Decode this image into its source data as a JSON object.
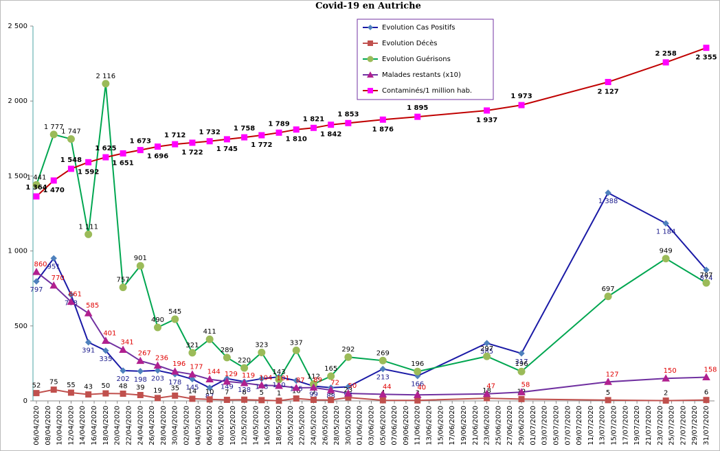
{
  "chart_data": {
    "type": "line",
    "title": "Covid-19 en Autriche",
    "x": [
      "06/04/2020",
      "09/04/2020",
      "12/04/2020",
      "15/04/2020",
      "18/04/2020",
      "21/04/2020",
      "24/04/2020",
      "27/04/2020",
      "30/04/2020",
      "03/05/2020",
      "06/05/2020",
      "09/05/2020",
      "12/05/2020",
      "15/05/2020",
      "18/05/2020",
      "21/05/2020",
      "24/05/2020",
      "27/05/2020",
      "30/05/2020",
      "05/06/2020",
      "11/06/2020",
      "23/06/2020",
      "29/06/2020",
      "14/07/2020",
      "24/07/2020",
      "31/07/2020"
    ],
    "xlim": [
      "06/04/2020",
      "31/07/2020"
    ],
    "xticks": [
      "06/04/2020",
      "08/04/2020",
      "10/04/2020",
      "12/04/2020",
      "14/04/2020",
      "16/04/2020",
      "18/04/2020",
      "20/04/2020",
      "22/04/2020",
      "24/04/2020",
      "26/04/2020",
      "28/04/2020",
      "30/04/2020",
      "02/05/2020",
      "04/05/2020",
      "06/05/2020",
      "08/05/2020",
      "10/05/2020",
      "12/05/2020",
      "14/05/2020",
      "16/05/2020",
      "18/05/2020",
      "20/05/2020",
      "22/05/2020",
      "24/05/2020",
      "26/05/2020",
      "28/05/2020",
      "30/05/2020",
      "01/06/2020",
      "03/06/2020",
      "05/06/2020",
      "07/06/2020",
      "09/06/2020",
      "11/06/2020",
      "13/06/2020",
      "15/06/2020",
      "17/06/2020",
      "19/06/2020",
      "21/06/2020",
      "23/06/2020",
      "25/06/2020",
      "27/06/2020",
      "29/06/2020",
      "01/07/2020",
      "03/07/2020",
      "05/07/2020",
      "07/07/2020",
      "09/07/2020",
      "11/07/2020",
      "13/07/2020",
      "15/07/2020",
      "17/07/2020",
      "19/07/2020",
      "21/07/2020",
      "23/07/2020",
      "25/07/2020",
      "27/07/2020",
      "29/07/2020",
      "31/07/2020"
    ],
    "ylim": [
      0,
      2500
    ],
    "yticks": [
      0,
      500,
      {
        "value": 1000,
        "label": "1 000"
      },
      {
        "value": 1500,
        "label": "1 500"
      },
      {
        "value": 2000,
        "label": "2 000"
      },
      {
        "value": 2500,
        "label": "2 500"
      }
    ],
    "grid": false,
    "legend": "top-center",
    "series": [
      {
        "name": "Evolution Cas Positifs",
        "color": "#1a1aa6",
        "marker": "diamond",
        "marker_color": "#4f81bd",
        "label_color": "#1a1a8c",
        "values": [
          797,
          951,
          708,
          391,
          335,
          202,
          198,
          203,
          178,
          145,
          87,
          149,
          128,
          148,
          160,
          135,
          99,
          88,
          94,
          213,
          166,
          385,
          317,
          1388,
          1184,
          874
        ],
        "value_labels": [
          "797",
          "951",
          "708",
          "391",
          "335",
          "202",
          "198",
          "203",
          "178",
          "145",
          "87",
          "149",
          "128",
          "148",
          "160",
          "135",
          "99",
          "88",
          "94",
          "213",
          "166",
          "385",
          "317",
          "1 388",
          "1 184",
          "874"
        ]
      },
      {
        "name": "Evolution Décès",
        "color": "#c0504d",
        "marker": "square",
        "marker_color": "#c0504d",
        "label_color": "#000000",
        "values": [
          52,
          75,
          55,
          43,
          50,
          48,
          39,
          19,
          35,
          14,
          10,
          7,
          8,
          5,
          1,
          16,
          7,
          6,
          23,
          4,
          3,
          18,
          12,
          5,
          2,
          6
        ],
        "value_labels": [
          "52",
          "75",
          "55",
          "43",
          "50",
          "48",
          "39",
          "19",
          "35",
          "14",
          "10",
          "7",
          "8",
          "5",
          "1",
          "16",
          "7",
          "6",
          "23",
          "4",
          "3",
          "18",
          "12",
          "5",
          "2",
          "6"
        ]
      },
      {
        "name": "Evolution Guérisons",
        "color": "#00a650",
        "marker": "circle",
        "marker_color": "#9bbb59",
        "label_color": "#000000",
        "values": [
          1441,
          1777,
          1747,
          1111,
          2116,
          757,
          901,
          490,
          545,
          321,
          411,
          289,
          220,
          323,
          143,
          337,
          112,
          165,
          292,
          269,
          196,
          297,
          196,
          697,
          949,
          787
        ],
        "value_labels": [
          "1 441",
          "1 777",
          "1 747",
          "1 111",
          "2 116",
          "757",
          "901",
          "490",
          "545",
          "321",
          "411",
          "289",
          "220",
          "323",
          "143",
          "337",
          "112",
          "165",
          "292",
          "269",
          "196",
          "297",
          "196",
          "697",
          "949",
          "787"
        ]
      },
      {
        "name": "Malades restants (x10)",
        "color": "#7030a0",
        "marker": "triangle",
        "marker_color": "#b0208f",
        "label_color": "#e00000",
        "values": [
          860,
          770,
          661,
          585,
          401,
          341,
          267,
          236,
          196,
          177,
          144,
          129,
          119,
          104,
          101,
          87,
          89,
          72,
          50,
          44,
          40,
          47,
          58,
          127,
          150,
          158
        ],
        "value_labels": [
          "860",
          "770",
          "661",
          "585",
          "401",
          "341",
          "267",
          "236",
          "196",
          "177",
          "144",
          "129",
          "119",
          "104",
          "101",
          "87",
          "89",
          "72",
          "50",
          "44",
          "40",
          "47",
          "58",
          "127",
          "150",
          "158"
        ]
      },
      {
        "name": "Contaminés/1 million hab.",
        "color": "#c00000",
        "marker": "square",
        "marker_color": "#ff00ff",
        "label_color": "#000000",
        "values": [
          1364,
          1470,
          1548,
          1592,
          1625,
          1651,
          1673,
          1696,
          1712,
          1722,
          1732,
          1745,
          1758,
          1772,
          1789,
          1810,
          1821,
          1842,
          1853,
          1876,
          1895,
          1937,
          1973,
          2127,
          2258,
          2355
        ],
        "value_labels": [
          "1 364",
          "1 470",
          "1 548",
          "1 592",
          "1 625",
          "1 651",
          "1 673",
          "1 696",
          "1 712",
          "1 722",
          "1 732",
          "1 745",
          "1 758",
          "1 772",
          "1 789",
          "1 810",
          "1 821",
          "1 842",
          "1 853",
          "1 876",
          "1 895",
          "1 937",
          "1 973",
          "2 127",
          "2 258",
          "2 355"
        ]
      }
    ]
  }
}
